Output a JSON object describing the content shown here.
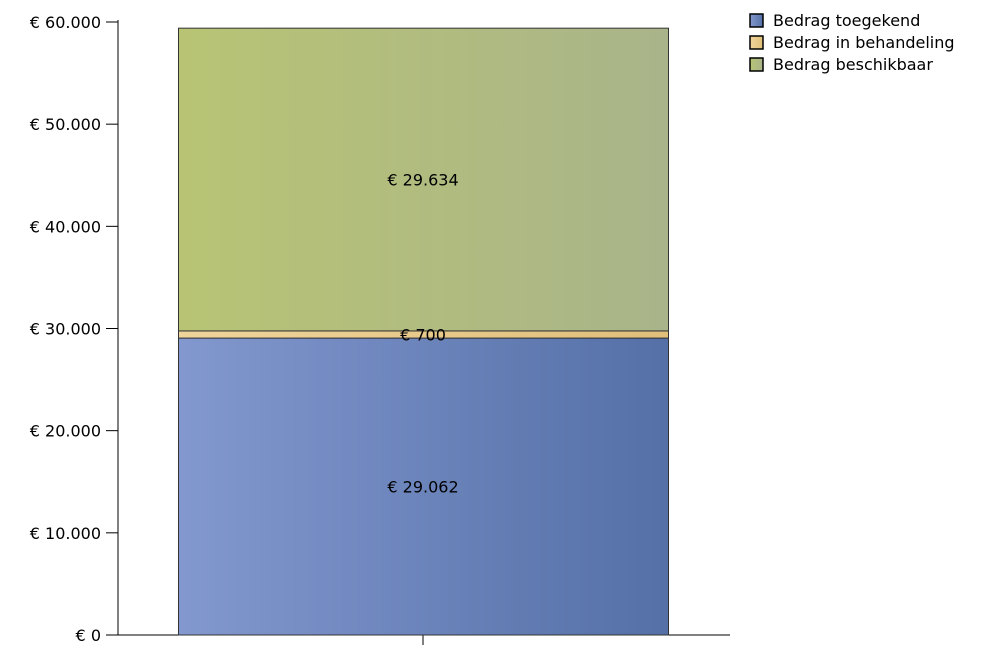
{
  "chart_data": {
    "type": "bar",
    "stacked": true,
    "categories": [
      ""
    ],
    "series": [
      {
        "name": "Bedrag toegekend",
        "values": [
          29062
        ],
        "label": "€ 29.062",
        "color": "#6680bf",
        "color_light": "#8298cf",
        "color_dark": "#5470a6"
      },
      {
        "name": "Bedrag in behandeling",
        "values": [
          700
        ],
        "label": "€ 700",
        "color": "#e8c888",
        "color_light": "#efd49b",
        "color_dark": "#e0bf7a"
      },
      {
        "name": "Bedrag beschikbaar",
        "values": [
          29634
        ],
        "label": "€ 29.634",
        "color": "#b0bf80",
        "color_light": "#b8c474",
        "color_dark": "#a9b48a"
      }
    ],
    "ylim": [
      0,
      60000
    ],
    "yticks": [
      {
        "value": 0,
        "label": "€ 0"
      },
      {
        "value": 10000,
        "label": "€ 10.000"
      },
      {
        "value": 20000,
        "label": "€ 20.000"
      },
      {
        "value": 30000,
        "label": "€ 30.000"
      },
      {
        "value": 40000,
        "label": "€ 40.000"
      },
      {
        "value": 50000,
        "label": "€ 50.000"
      },
      {
        "value": 60000,
        "label": "€ 60.000"
      }
    ],
    "grid": false,
    "legend_position": "top-right"
  }
}
